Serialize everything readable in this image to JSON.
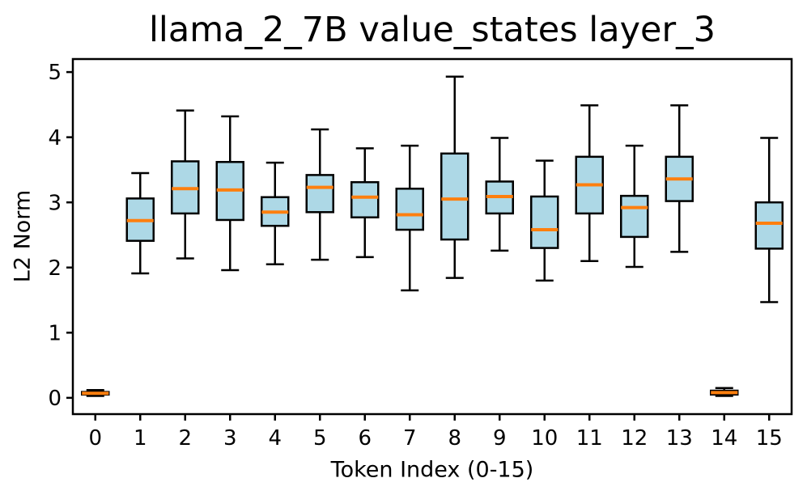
{
  "title": "llama_2_7B value_states layer_3",
  "chart_data": {
    "type": "boxplot",
    "title": "llama_2_7B value_states layer_3",
    "xlabel": "Token Index (0-15)",
    "ylabel": "L2 Norm",
    "categories": [
      "0",
      "1",
      "2",
      "3",
      "4",
      "5",
      "6",
      "7",
      "8",
      "9",
      "10",
      "11",
      "12",
      "13",
      "14",
      "15"
    ],
    "y_ticks": [
      0,
      1,
      2,
      3,
      4,
      5
    ],
    "ylim": [
      -0.25,
      5.2
    ],
    "grid": false,
    "legend": null,
    "colors": {
      "box_fill": "#ADD8E6",
      "box_edge": "#000000",
      "median": "#FF7F0E",
      "whisker": "#000000",
      "spine": "#000000",
      "background": "#FFFFFF",
      "text": "#000000"
    },
    "boxes": [
      {
        "token": "0",
        "whisker_low": 0.03,
        "q1": 0.05,
        "median": 0.07,
        "q3": 0.09,
        "whisker_high": 0.12
      },
      {
        "token": "1",
        "whisker_low": 1.91,
        "q1": 2.41,
        "median": 2.72,
        "q3": 3.06,
        "whisker_high": 3.45
      },
      {
        "token": "2",
        "whisker_low": 2.14,
        "q1": 2.83,
        "median": 3.21,
        "q3": 3.63,
        "whisker_high": 4.41
      },
      {
        "token": "3",
        "whisker_low": 1.96,
        "q1": 2.73,
        "median": 3.19,
        "q3": 3.62,
        "whisker_high": 4.32
      },
      {
        "token": "4",
        "whisker_low": 2.05,
        "q1": 2.64,
        "median": 2.85,
        "q3": 3.08,
        "whisker_high": 3.61
      },
      {
        "token": "5",
        "whisker_low": 2.12,
        "q1": 2.85,
        "median": 3.23,
        "q3": 3.42,
        "whisker_high": 4.12
      },
      {
        "token": "6",
        "whisker_low": 2.16,
        "q1": 2.77,
        "median": 3.08,
        "q3": 3.31,
        "whisker_high": 3.83
      },
      {
        "token": "7",
        "whisker_low": 1.65,
        "q1": 2.58,
        "median": 2.81,
        "q3": 3.21,
        "whisker_high": 3.87
      },
      {
        "token": "8",
        "whisker_low": 1.84,
        "q1": 2.43,
        "median": 3.05,
        "q3": 3.75,
        "whisker_high": 4.93
      },
      {
        "token": "9",
        "whisker_low": 2.26,
        "q1": 2.83,
        "median": 3.09,
        "q3": 3.32,
        "whisker_high": 3.99
      },
      {
        "token": "10",
        "whisker_low": 1.8,
        "q1": 2.3,
        "median": 2.58,
        "q3": 3.09,
        "whisker_high": 3.64
      },
      {
        "token": "11",
        "whisker_low": 2.1,
        "q1": 2.83,
        "median": 3.27,
        "q3": 3.7,
        "whisker_high": 4.49
      },
      {
        "token": "12",
        "whisker_low": 2.01,
        "q1": 2.47,
        "median": 2.92,
        "q3": 3.1,
        "whisker_high": 3.87
      },
      {
        "token": "13",
        "whisker_low": 2.24,
        "q1": 3.02,
        "median": 3.36,
        "q3": 3.7,
        "whisker_high": 4.49
      },
      {
        "token": "14",
        "whisker_low": 0.03,
        "q1": 0.05,
        "median": 0.08,
        "q3": 0.11,
        "whisker_high": 0.15
      },
      {
        "token": "15",
        "whisker_low": 1.47,
        "q1": 2.29,
        "median": 2.68,
        "q3": 3.0,
        "whisker_high": 3.99
      }
    ]
  }
}
